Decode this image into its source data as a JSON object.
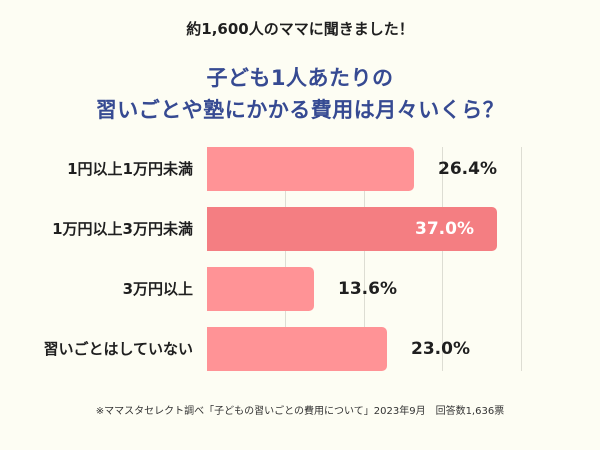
{
  "header": {
    "subtitle": "約1,600人のママに聞きました！",
    "title_line1": "子ども1人あたりの",
    "title_line2": "習いごとや塾にかかる費用は月々いくら？"
  },
  "footer": {
    "note": "※ママスタセレクト調べ「子どもの習いごとの費用について」2023年9月　回答数1,636票"
  },
  "colors": {
    "background": "#FDFDF3",
    "title": "#364A92",
    "bar": "#FF9396",
    "bar_highlight": "#F47E82",
    "grid": "#DDDDD3"
  },
  "chart_data": {
    "type": "bar",
    "orientation": "horizontal",
    "title": "子ども1人あたりの習いごとや塾にかかる費用は月々いくら？",
    "subtitle": "約1,600人のママに聞きました！",
    "categories": [
      "1円以上1万円未満",
      "1万円以上3万円未満",
      "3万円以上",
      "習いごとはしていない"
    ],
    "values": [
      26.4,
      37.0,
      13.6,
      23.0
    ],
    "value_labels": [
      "26.4%",
      "37.0%",
      "13.6%",
      "23.0%"
    ],
    "highlight_index": 1,
    "xlabel": "",
    "ylabel": "",
    "xlim": [
      0,
      40
    ],
    "gridlines_x": [
      10,
      20,
      30,
      40
    ],
    "grid": true,
    "legend": null,
    "source": "※ママスタセレクト調べ「子どもの習いごとの費用について」2023年9月　回答数1,636票"
  }
}
